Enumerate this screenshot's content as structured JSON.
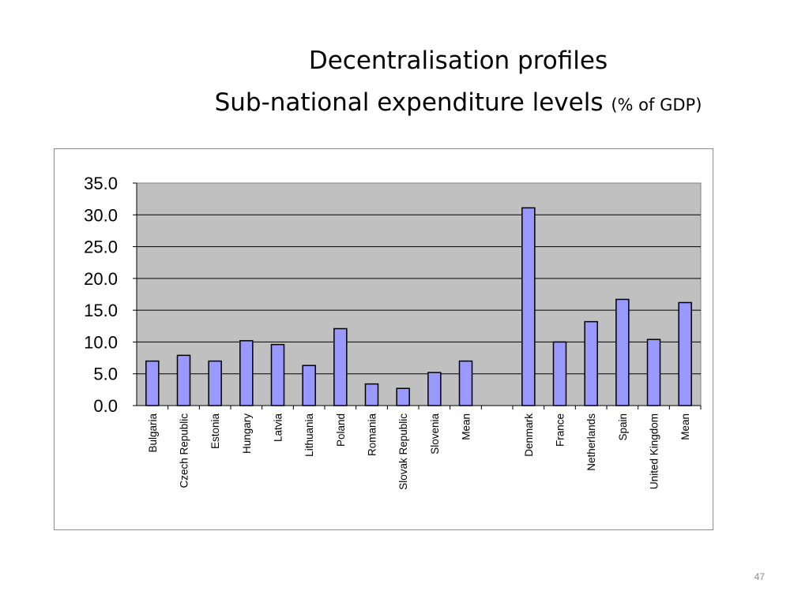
{
  "slide": {
    "title_line1": "Decentralisation profiles",
    "title_line2": "Sub-national expenditure levels",
    "title_unit": "(% of GDP)",
    "page_number": "47"
  },
  "chart_data": {
    "type": "bar",
    "title": "",
    "xlabel": "",
    "ylabel": "",
    "ylim": [
      0,
      35
    ],
    "yticks": [
      "0.0",
      "5.0",
      "10.0",
      "15.0",
      "20.0",
      "25.0",
      "30.0",
      "35.0"
    ],
    "grid": true,
    "legend": "none",
    "colors": {
      "bar_fill": "#9999ff",
      "bar_stroke": "#000000",
      "plot_bg": "#c0c0c0",
      "grid": "#000000"
    },
    "groups": [
      {
        "categories": [
          "Bulgaria",
          "Czech Republic",
          "Estonia",
          "Hungary",
          "Latvia",
          "Lithuania",
          "Poland",
          "Romania",
          "Slovak Republic",
          "Slovenia",
          "Mean"
        ],
        "values": [
          7.0,
          7.9,
          7.0,
          10.2,
          9.6,
          6.3,
          12.1,
          3.4,
          2.7,
          5.2,
          7.0
        ]
      },
      {
        "categories": [
          "Denmark",
          "France",
          "Netherlands",
          "Spain",
          "United Kingdom",
          "Mean"
        ],
        "values": [
          31.1,
          10.0,
          13.2,
          16.7,
          10.4,
          16.2
        ]
      }
    ]
  }
}
